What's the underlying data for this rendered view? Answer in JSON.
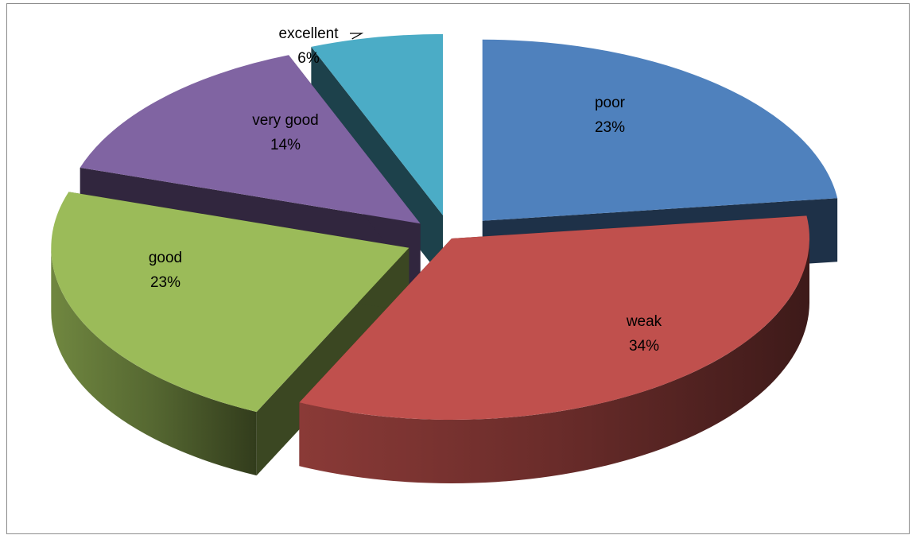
{
  "chart_data": {
    "type": "pie",
    "style": "3d-exploded",
    "title": "",
    "slices": [
      {
        "label": "poor",
        "value": 23,
        "display": "23%",
        "color": "#4F81BD"
      },
      {
        "label": "weak",
        "value": 34,
        "display": "34%",
        "color": "#C0504D"
      },
      {
        "label": "good",
        "value": 23,
        "display": "23%",
        "color": "#9BBB59"
      },
      {
        "label": "very good",
        "value": 14,
        "display": "14%",
        "color": "#8064A2"
      },
      {
        "label": "excellent",
        "value": 6,
        "display": "6%",
        "color": "#4BACC6"
      }
    ],
    "legend": "none"
  }
}
